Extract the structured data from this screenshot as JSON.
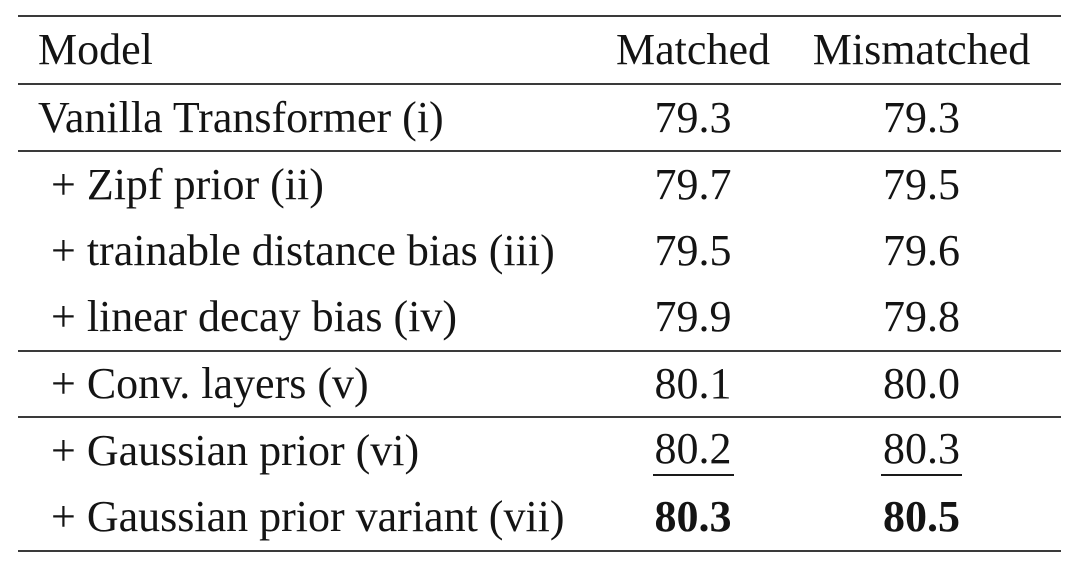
{
  "table": {
    "header": {
      "model": "Model",
      "matched": "Matched",
      "mismatched": "Mismatched"
    },
    "rows": [
      {
        "model": "Vanilla Transformer (i)",
        "matched": "79.3",
        "mismatched": "79.3",
        "style": "normal"
      },
      {
        "model": "+ Zipf prior (ii)",
        "matched": "79.7",
        "mismatched": "79.5",
        "style": "normal"
      },
      {
        "model": "+ trainable distance bias (iii)",
        "matched": "79.5",
        "mismatched": "79.6",
        "style": "normal"
      },
      {
        "model": "+ linear decay bias (iv)",
        "matched": "79.9",
        "mismatched": "79.8",
        "style": "normal"
      },
      {
        "model": "+ Conv. layers (v)",
        "matched": "80.1",
        "mismatched": "80.0",
        "style": "normal"
      },
      {
        "model": "+ Gaussian prior (vi)",
        "matched": "80.2",
        "mismatched": "80.3",
        "style": "underline"
      },
      {
        "model": "+ Gaussian prior variant (vii)",
        "matched": "80.3",
        "mismatched": "80.5",
        "style": "bold"
      }
    ]
  },
  "colors": {
    "background": "#ffffff",
    "text": "#141414",
    "rule": "#3a3a3a"
  },
  "chart_data": {
    "type": "table",
    "columns": [
      "Model",
      "Matched",
      "Mismatched"
    ],
    "rows": [
      {
        "model": "Vanilla Transformer (i)",
        "matched": 79.3,
        "mismatched": 79.3
      },
      {
        "model": "+ Zipf prior (ii)",
        "matched": 79.7,
        "mismatched": 79.5
      },
      {
        "model": "+ trainable distance bias (iii)",
        "matched": 79.5,
        "mismatched": 79.6
      },
      {
        "model": "+ linear decay bias (iv)",
        "matched": 79.9,
        "mismatched": 79.8
      },
      {
        "model": "+ Conv. layers (v)",
        "matched": 80.1,
        "mismatched": 80.0
      },
      {
        "model": "+ Gaussian prior (vi)",
        "matched": 80.2,
        "mismatched": 80.3
      },
      {
        "model": "+ Gaussian prior variant (vii)",
        "matched": 80.3,
        "mismatched": 80.5
      }
    ],
    "emphasis": {
      "underlined_row": "+ Gaussian prior (vi)",
      "bold_row": "+ Gaussian prior variant (vii)"
    },
    "layout": {
      "rule_positions": "top, below header, below row i, below row iv, below row v, bottom",
      "value_alignment": "center",
      "model_alignment": "left with indent on + rows"
    }
  }
}
